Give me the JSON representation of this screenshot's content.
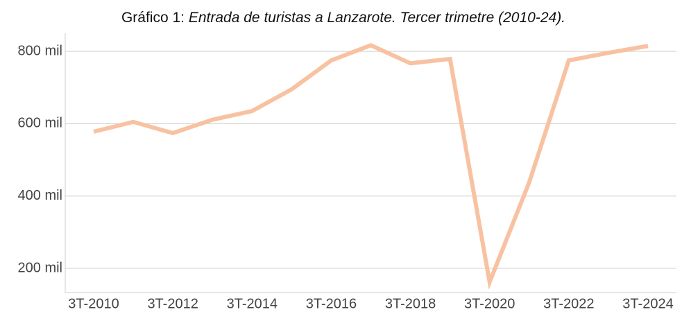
{
  "chart_data": {
    "type": "line",
    "title": "Gráfico 1:",
    "subtitle": "Entrada de turistas a Lanzarote. Tercer trimetre (2010-24).",
    "categories": [
      "3T-2010",
      null,
      "3T-2012",
      null,
      "3T-2014",
      null,
      "3T-2016",
      null,
      "3T-2018",
      null,
      "3T-2020",
      null,
      "3T-2022",
      null,
      "3T-2024"
    ],
    "series": [
      {
        "name": null,
        "color": "#f8c2a2",
        "values": [
          578000,
          605000,
          574000,
          611000,
          635000,
          695000,
          775000,
          817000,
          767000,
          779000,
          162000,
          438000,
          775000,
          796000,
          815000
        ]
      }
    ],
    "ylim": [
      133000,
      850000
    ],
    "yticks": [
      {
        "value": 200000,
        "label": "200 mil"
      },
      {
        "value": 400000,
        "label": "400 mil"
      },
      {
        "value": 600000,
        "label": "600 mil"
      },
      {
        "value": 800000,
        "label": "800 mil"
      }
    ],
    "grid": true
  }
}
